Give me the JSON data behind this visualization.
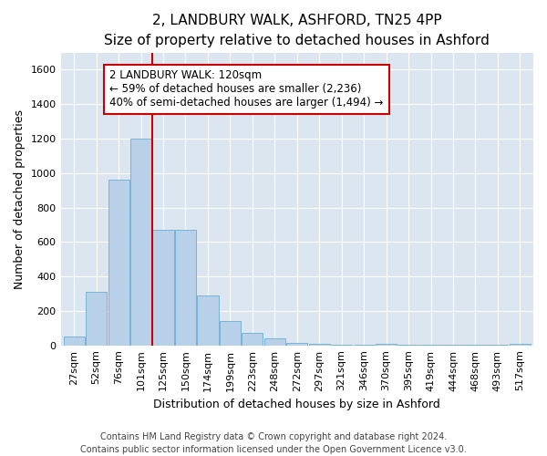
{
  "title": "2, LANDBURY WALK, ASHFORD, TN25 4PP",
  "subtitle": "Size of property relative to detached houses in Ashford",
  "xlabel": "Distribution of detached houses by size in Ashford",
  "ylabel": "Number of detached properties",
  "bar_labels": [
    "27sqm",
    "52sqm",
    "76sqm",
    "101sqm",
    "125sqm",
    "150sqm",
    "174sqm",
    "199sqm",
    "223sqm",
    "248sqm",
    "272sqm",
    "297sqm",
    "321sqm",
    "346sqm",
    "370sqm",
    "395sqm",
    "419sqm",
    "444sqm",
    "468sqm",
    "493sqm",
    "517sqm"
  ],
  "bar_values": [
    50,
    310,
    960,
    1200,
    670,
    670,
    290,
    140,
    70,
    40,
    15,
    10,
    5,
    5,
    8,
    2,
    2,
    5,
    2,
    2,
    10
  ],
  "bar_color": "#b8d0e8",
  "bar_edge_color": "#6aaed6",
  "vline_pos": 3.5,
  "vline_color": "#cc0000",
  "annotation_text": "2 LANDBURY WALK: 120sqm\n← 59% of detached houses are smaller (2,236)\n40% of semi-detached houses are larger (1,494) →",
  "annotation_box_fc": "#ffffff",
  "annotation_box_ec": "#cc0000",
  "ylim": [
    0,
    1700
  ],
  "yticks": [
    0,
    200,
    400,
    600,
    800,
    1000,
    1200,
    1400,
    1600
  ],
  "footer_line1": "Contains HM Land Registry data © Crown copyright and database right 2024.",
  "footer_line2": "Contains public sector information licensed under the Open Government Licence v3.0.",
  "bg_color": "#dce6f1",
  "grid_color": "#ffffff",
  "title_fontsize": 11,
  "subtitle_fontsize": 10,
  "axis_label_fontsize": 9,
  "tick_fontsize": 8,
  "annotation_fontsize": 8.5,
  "footer_fontsize": 7
}
